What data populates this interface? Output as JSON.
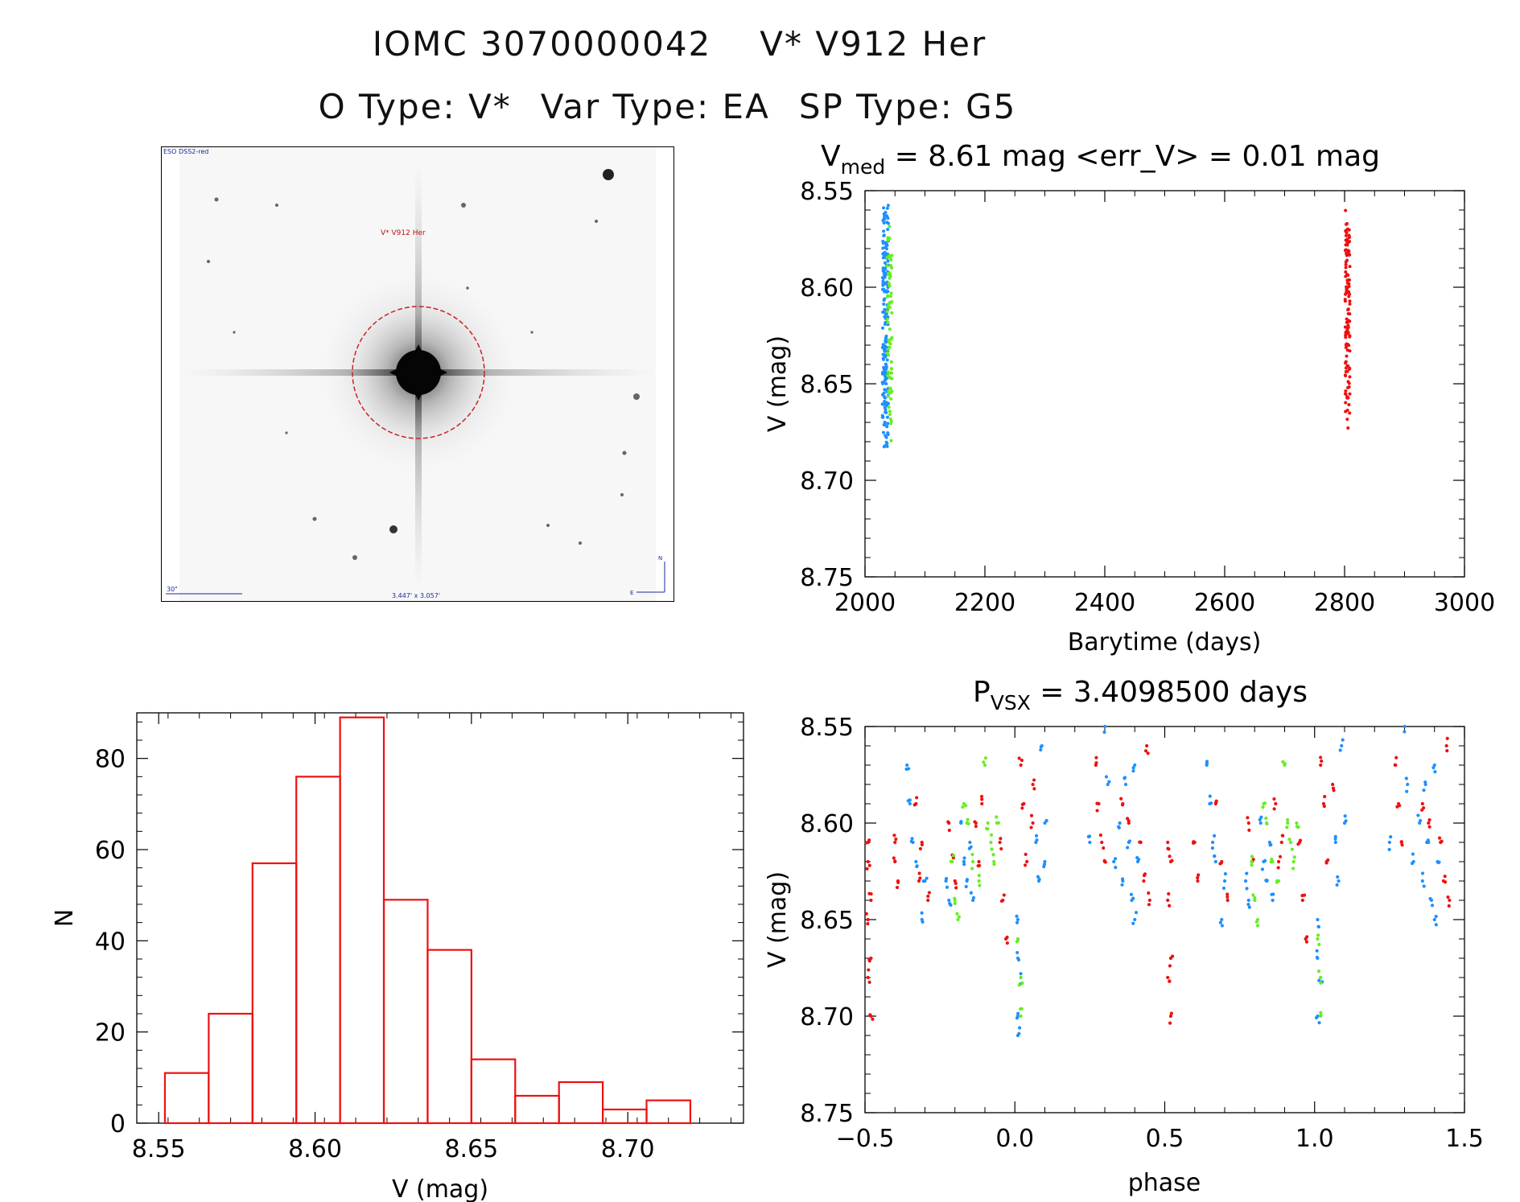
{
  "header": {
    "id_line": [
      "IOMC 3070000042",
      "V* V912 Her"
    ],
    "type_line": [
      "O Type: V*",
      "Var Type: EA",
      "SP Type: G5"
    ]
  },
  "finder_image": {
    "source_label": "ESO DSS2-red",
    "target_label": "V* V912 Her",
    "scale_label": "30\"",
    "fov_label": "3.447' x 3.057'",
    "north_label": "N",
    "east_label": "E"
  },
  "chart_data": [
    {
      "id": "lightcurve",
      "type": "scatter",
      "title": {
        "prefix": "V",
        "subscript": "med",
        "suffix": " = 8.61 mag <err_V> = 0.01 mag"
      },
      "xlabel": "Barytime (days)",
      "ylabel": "V (mag)",
      "xlim": [
        2000,
        3000
      ],
      "ylim": [
        8.75,
        8.55
      ],
      "xticks": [
        "2000",
        "2200",
        "2400",
        "2600",
        "2800",
        "3000"
      ],
      "yticks": [
        "8.55",
        "8.60",
        "8.65",
        "8.70",
        "8.75"
      ],
      "series": [
        {
          "color": "#1e90ff",
          "x_center": 2034,
          "x_spread": 5,
          "y_range": [
            8.555,
            8.712
          ],
          "count": 190
        },
        {
          "color": "#66ee22",
          "x_center": 2041,
          "x_spread": 4,
          "y_range": [
            8.568,
            8.703
          ],
          "count": 70
        },
        {
          "color": "#ee1111",
          "x_center": 2805,
          "x_spread": 4,
          "y_range": [
            8.56,
            8.698
          ],
          "count": 120
        }
      ]
    },
    {
      "id": "histogram",
      "type": "bar",
      "xlabel": "V (mag)",
      "ylabel": "N",
      "xlim": [
        8.543,
        8.737
      ],
      "ylim": [
        0,
        90
      ],
      "xticks": [
        "8.55",
        "8.60",
        "8.65",
        "8.70"
      ],
      "yticks": [
        "0",
        "20",
        "40",
        "60",
        "80"
      ],
      "bin_edges": [
        8.552,
        8.566,
        8.58,
        8.594,
        8.608,
        8.622,
        8.636,
        8.65,
        8.664,
        8.678,
        8.692,
        8.706
      ],
      "values": [
        11,
        24,
        57,
        76,
        89,
        49,
        38,
        14,
        6,
        9,
        3,
        5
      ],
      "color": "#ee1111"
    },
    {
      "id": "phased",
      "type": "scatter",
      "title": {
        "prefix": "P",
        "subscript": "VSX",
        "suffix": " = 3.4098500 days"
      },
      "xlabel": "phase",
      "ylabel": "V (mag)",
      "xlim": [
        -0.5,
        1.5
      ],
      "ylim": [
        8.75,
        8.55
      ],
      "xticks": [
        "−0.5",
        "0.0",
        "0.5",
        "1.0",
        "1.5"
      ],
      "yticks": [
        "8.55",
        "8.60",
        "8.65",
        "8.70",
        "8.75"
      ],
      "groups": [
        {
          "color": "#ee1111",
          "points": [
            [
              -0.49,
              8.61
            ],
            [
              -0.49,
              8.62
            ],
            [
              -0.48,
              8.64
            ],
            [
              -0.49,
              8.65
            ],
            [
              -0.48,
              8.67
            ],
            [
              -0.49,
              8.68
            ],
            [
              -0.48,
              8.7
            ],
            [
              -0.4,
              8.61
            ],
            [
              -0.39,
              8.63
            ],
            [
              -0.4,
              8.62
            ],
            [
              -0.33,
              8.59
            ],
            [
              -0.31,
              8.61
            ],
            [
              -0.32,
              8.63
            ],
            [
              -0.29,
              8.64
            ],
            [
              -0.22,
              8.6
            ],
            [
              -0.21,
              8.62
            ],
            [
              -0.2,
              8.63
            ],
            [
              -0.13,
              8.6
            ],
            [
              -0.12,
              8.62
            ],
            [
              -0.11,
              8.59
            ],
            [
              -0.05,
              8.61
            ],
            [
              -0.04,
              8.64
            ],
            [
              -0.03,
              8.66
            ],
            [
              0.02,
              8.57
            ],
            [
              0.03,
              8.59
            ],
            [
              0.04,
              8.62
            ],
            [
              0.06,
              8.58
            ],
            [
              0.06,
              8.6
            ],
            [
              0.27,
              8.57
            ],
            [
              0.28,
              8.59
            ],
            [
              0.29,
              8.61
            ],
            [
              0.3,
              8.62
            ],
            [
              0.36,
              8.59
            ],
            [
              0.38,
              8.6
            ],
            [
              0.42,
              8.61
            ],
            [
              0.43,
              8.63
            ],
            [
              0.44,
              8.56
            ],
            [
              0.45,
              8.64
            ],
            [
              0.51,
              8.61
            ],
            [
              0.52,
              8.62
            ],
            [
              0.51,
              8.64
            ],
            [
              0.52,
              8.67
            ],
            [
              0.51,
              8.68
            ],
            [
              0.52,
              8.7
            ],
            [
              0.6,
              8.61
            ],
            [
              0.61,
              8.63
            ],
            [
              0.67,
              8.59
            ],
            [
              0.69,
              8.62
            ],
            [
              0.71,
              8.64
            ],
            [
              0.78,
              8.6
            ],
            [
              0.79,
              8.62
            ],
            [
              0.87,
              8.59
            ],
            [
              0.88,
              8.62
            ],
            [
              0.89,
              8.61
            ],
            [
              0.95,
              8.61
            ],
            [
              0.96,
              8.64
            ],
            [
              0.97,
              8.66
            ],
            [
              1.02,
              8.57
            ],
            [
              1.03,
              8.59
            ],
            [
              1.04,
              8.62
            ],
            [
              1.06,
              8.58
            ],
            [
              1.27,
              8.57
            ],
            [
              1.28,
              8.59
            ],
            [
              1.29,
              8.61
            ],
            [
              1.36,
              8.59
            ],
            [
              1.38,
              8.6
            ],
            [
              1.42,
              8.61
            ],
            [
              1.43,
              8.63
            ],
            [
              1.44,
              8.56
            ],
            [
              1.45,
              8.64
            ]
          ]
        },
        {
          "color": "#1e90ff",
          "points": [
            [
              -0.36,
              8.57
            ],
            [
              -0.35,
              8.59
            ],
            [
              -0.34,
              8.61
            ],
            [
              -0.33,
              8.62
            ],
            [
              -0.3,
              8.63
            ],
            [
              -0.31,
              8.65
            ],
            [
              -0.23,
              8.63
            ],
            [
              -0.22,
              8.64
            ],
            [
              -0.18,
              8.6
            ],
            [
              -0.17,
              8.62
            ],
            [
              -0.16,
              8.63
            ],
            [
              -0.15,
              8.61
            ],
            [
              -0.14,
              8.64
            ],
            [
              0.01,
              8.65
            ],
            [
              0.01,
              8.67
            ],
            [
              0.02,
              8.68
            ],
            [
              0.01,
              8.7
            ],
            [
              0.01,
              8.71
            ],
            [
              0.07,
              8.61
            ],
            [
              0.08,
              8.63
            ],
            [
              0.09,
              8.56
            ],
            [
              0.1,
              8.6
            ],
            [
              0.1,
              8.62
            ],
            [
              0.25,
              8.61
            ],
            [
              0.3,
              8.55
            ],
            [
              0.31,
              8.58
            ],
            [
              0.33,
              8.62
            ],
            [
              0.35,
              8.6
            ],
            [
              0.36,
              8.63
            ],
            [
              0.37,
              8.58
            ],
            [
              0.38,
              8.61
            ],
            [
              0.39,
              8.64
            ],
            [
              0.4,
              8.57
            ],
            [
              0.41,
              8.62
            ],
            [
              0.4,
              8.65
            ],
            [
              0.64,
              8.57
            ],
            [
              0.65,
              8.59
            ],
            [
              0.66,
              8.61
            ],
            [
              0.67,
              8.62
            ],
            [
              0.7,
              8.63
            ],
            [
              0.69,
              8.65
            ],
            [
              0.77,
              8.63
            ],
            [
              0.78,
              8.64
            ],
            [
              0.82,
              8.6
            ],
            [
              0.83,
              8.62
            ],
            [
              0.84,
              8.63
            ],
            [
              0.85,
              8.61
            ],
            [
              0.86,
              8.64
            ],
            [
              1.01,
              8.65
            ],
            [
              1.01,
              8.67
            ],
            [
              1.02,
              8.68
            ],
            [
              1.01,
              8.7
            ],
            [
              1.07,
              8.61
            ],
            [
              1.08,
              8.63
            ],
            [
              1.09,
              8.56
            ],
            [
              1.1,
              8.6
            ],
            [
              1.25,
              8.61
            ],
            [
              1.3,
              8.55
            ],
            [
              1.31,
              8.58
            ],
            [
              1.33,
              8.62
            ],
            [
              1.35,
              8.6
            ],
            [
              1.36,
              8.63
            ],
            [
              1.37,
              8.58
            ],
            [
              1.38,
              8.61
            ],
            [
              1.39,
              8.64
            ],
            [
              1.4,
              8.57
            ],
            [
              1.41,
              8.62
            ],
            [
              1.4,
              8.65
            ]
          ]
        },
        {
          "color": "#66ee22",
          "points": [
            [
              -0.21,
              8.62
            ],
            [
              -0.2,
              8.64
            ],
            [
              -0.19,
              8.65
            ],
            [
              -0.17,
              8.59
            ],
            [
              -0.16,
              8.6
            ],
            [
              -0.14,
              8.62
            ],
            [
              -0.12,
              8.63
            ],
            [
              -0.1,
              8.57
            ],
            [
              -0.09,
              8.6
            ],
            [
              -0.08,
              8.61
            ],
            [
              -0.07,
              8.62
            ],
            [
              -0.06,
              8.6
            ],
            [
              0.01,
              8.66
            ],
            [
              0.02,
              8.68
            ],
            [
              0.02,
              8.7
            ],
            [
              0.79,
              8.62
            ],
            [
              0.8,
              8.64
            ],
            [
              0.81,
              8.65
            ],
            [
              0.83,
              8.59
            ],
            [
              0.84,
              8.6
            ],
            [
              0.86,
              8.62
            ],
            [
              0.88,
              8.63
            ],
            [
              0.9,
              8.57
            ],
            [
              0.91,
              8.6
            ],
            [
              0.92,
              8.61
            ],
            [
              0.93,
              8.62
            ],
            [
              0.94,
              8.6
            ],
            [
              1.01,
              8.66
            ],
            [
              1.02,
              8.68
            ],
            [
              1.02,
              8.7
            ]
          ]
        }
      ]
    }
  ]
}
